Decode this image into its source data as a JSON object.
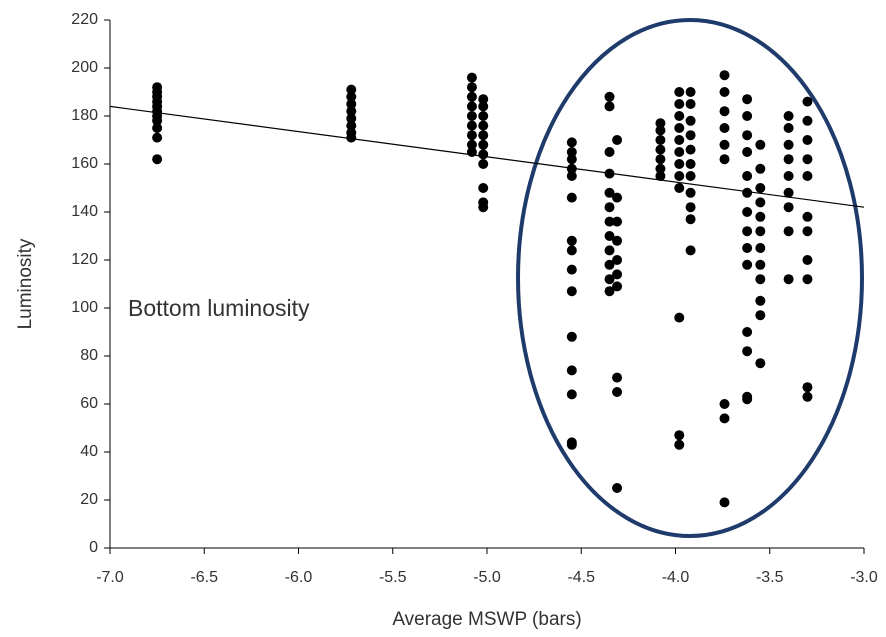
{
  "chart_data": {
    "type": "scatter",
    "xlabel": "Average MSWP (bars)",
    "ylabel": "Luminosity",
    "annotation": "Bottom luminosity",
    "xlim": [
      -7,
      -3
    ],
    "ylim": [
      0,
      220
    ],
    "xticks": [
      {
        "value": -7,
        "label": "-7.0"
      },
      -6.5,
      {
        "value": -6,
        "label": "-6.0"
      },
      -5.5,
      {
        "value": -5,
        "label": "-5.0"
      },
      -4.5,
      {
        "value": -4,
        "label": "-4.0"
      },
      -3.5,
      {
        "value": -3,
        "label": "-3.0"
      }
    ],
    "yticks": [
      0,
      20,
      40,
      60,
      80,
      100,
      120,
      140,
      160,
      180,
      200,
      220
    ],
    "points": {
      "color": "#000000",
      "x": [
        -6.75,
        -6.75,
        -6.75,
        -6.75,
        -6.75,
        -6.75,
        -6.75,
        -6.75,
        -6.75,
        -6.75,
        -6.75,
        -5.72,
        -5.72,
        -5.72,
        -5.72,
        -5.72,
        -5.72,
        -5.72,
        -5.72,
        -5.08,
        -5.08,
        -5.08,
        -5.08,
        -5.08,
        -5.08,
        -5.08,
        -5.08,
        -5.08,
        -5.02,
        -5.02,
        -5.02,
        -5.02,
        -5.02,
        -5.02,
        -5.02,
        -5.02,
        -5.02,
        -5.02,
        -5.02,
        -4.55,
        -4.55,
        -4.55,
        -4.55,
        -4.55,
        -4.55,
        -4.55,
        -4.55,
        -4.55,
        -4.55,
        -4.55,
        -4.55,
        -4.55,
        -4.55,
        -4.55,
        -4.35,
        -4.35,
        -4.35,
        -4.35,
        -4.35,
        -4.35,
        -4.35,
        -4.35,
        -4.35,
        -4.35,
        -4.35,
        -4.35,
        -4.31,
        -4.31,
        -4.31,
        -4.31,
        -4.31,
        -4.31,
        -4.31,
        -4.31,
        -4.31,
        -4.31,
        -4.08,
        -4.08,
        -4.08,
        -4.08,
        -4.08,
        -4.08,
        -4.08,
        -3.98,
        -3.98,
        -3.98,
        -3.98,
        -3.98,
        -3.98,
        -3.98,
        -3.98,
        -3.98,
        -3.98,
        -3.98,
        -3.98,
        -3.92,
        -3.92,
        -3.92,
        -3.92,
        -3.92,
        -3.92,
        -3.92,
        -3.92,
        -3.92,
        -3.92,
        -3.92,
        -3.74,
        -3.74,
        -3.74,
        -3.74,
        -3.74,
        -3.74,
        -3.74,
        -3.74,
        -3.74,
        -3.62,
        -3.62,
        -3.62,
        -3.62,
        -3.62,
        -3.62,
        -3.62,
        -3.62,
        -3.62,
        -3.62,
        -3.62,
        -3.62,
        -3.62,
        -3.62,
        -3.55,
        -3.55,
        -3.55,
        -3.55,
        -3.55,
        -3.55,
        -3.55,
        -3.55,
        -3.55,
        -3.55,
        -3.55,
        -3.55,
        -3.4,
        -3.4,
        -3.4,
        -3.4,
        -3.4,
        -3.4,
        -3.4,
        -3.4,
        -3.4,
        -3.3,
        -3.3,
        -3.3,
        -3.3,
        -3.3,
        -3.3,
        -3.3,
        -3.3,
        -3.3,
        -3.3,
        -3.3
      ],
      "y": [
        162,
        171,
        175,
        178,
        180,
        182,
        184,
        186,
        188,
        190,
        192,
        171,
        173,
        176,
        179,
        182,
        185,
        188,
        191,
        165,
        168,
        172,
        176,
        180,
        184,
        188,
        192,
        196,
        142,
        144,
        150,
        160,
        164,
        168,
        172,
        176,
        180,
        184,
        187,
        43,
        44,
        64,
        74,
        88,
        107,
        116,
        124,
        128,
        146,
        155,
        158,
        162,
        165,
        169,
        107,
        112,
        118,
        124,
        130,
        136,
        142,
        148,
        156,
        165,
        184,
        188,
        25,
        65,
        71,
        109,
        114,
        120,
        128,
        136,
        146,
        170,
        155,
        158,
        162,
        166,
        170,
        174,
        177,
        43,
        47,
        96,
        150,
        155,
        160,
        165,
        170,
        175,
        180,
        185,
        190,
        124,
        137,
        142,
        148,
        155,
        160,
        166,
        172,
        178,
        185,
        190,
        19,
        54,
        60,
        162,
        168,
        175,
        182,
        190,
        197,
        62,
        63,
        82,
        90,
        118,
        125,
        132,
        140,
        148,
        155,
        165,
        172,
        180,
        187,
        77,
        97,
        103,
        112,
        118,
        125,
        132,
        138,
        144,
        150,
        158,
        168,
        112,
        132,
        142,
        148,
        155,
        162,
        168,
        175,
        180,
        63,
        67,
        112,
        120,
        132,
        138,
        155,
        162,
        170,
        178,
        186
      ]
    },
    "trendline": {
      "color": "#000000",
      "x": [
        -7,
        -3
      ],
      "y": [
        184,
        142
      ]
    }
  }
}
